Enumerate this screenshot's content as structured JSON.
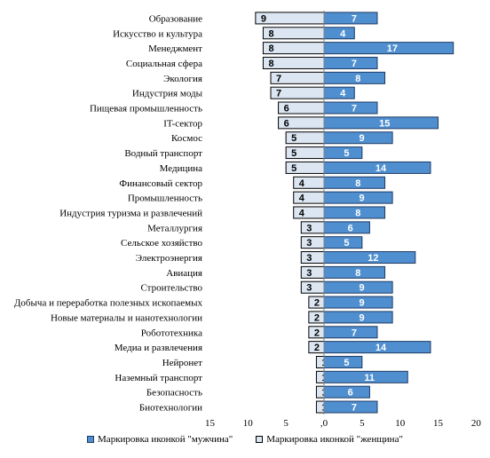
{
  "chart_data": {
    "type": "bar",
    "orientation": "horizontal-diverging",
    "categories": [
      "Образование",
      "Искусство и культура",
      "Менеджмент",
      "Социальная сфера",
      "Экология",
      "Индустрия моды",
      "Пищевая промышленность",
      "IT-сектор",
      "Космос",
      "Водный транспорт",
      "Медицина",
      "Финансовый сектор",
      "Промышленность",
      "Индустрия туризма и развлечений",
      "Металлургия",
      "Сельское хозяйство",
      "Электроэнергия",
      "Авиация",
      "Строительство",
      "Добыча и переработка полезных ископаемых",
      "Новые материалы и нанотехнологии",
      "Робототехника",
      "Медиа и развлечения",
      "Нейронет",
      "Наземный транспорт",
      "Безопасность",
      "Биотехнологии"
    ],
    "series": [
      {
        "name": "Маркировка иконкой \"женщина\"",
        "direction": "left",
        "color": "#dce6f2",
        "stroke": "#000000",
        "values": [
          9,
          8,
          8,
          8,
          7,
          7,
          6,
          6,
          5,
          5,
          5,
          4,
          4,
          4,
          3,
          3,
          3,
          3,
          3,
          2,
          2,
          2,
          2,
          1,
          1,
          1,
          1
        ]
      },
      {
        "name": "Маркировка иконкой \"мужчина\"",
        "direction": "right",
        "color": "#4f8fd0",
        "stroke": "#1f3b63",
        "values": [
          7,
          4,
          17,
          7,
          8,
          4,
          7,
          15,
          9,
          5,
          14,
          8,
          9,
          8,
          6,
          5,
          12,
          8,
          9,
          9,
          9,
          7,
          14,
          5,
          11,
          6,
          7
        ]
      }
    ],
    "xlim": [
      -15,
      20
    ],
    "x_ticks": [
      {
        "value": -15,
        "label": "15"
      },
      {
        "value": -10,
        "label": "10"
      },
      {
        "value": -5,
        "label": "5"
      },
      {
        "value": 0,
        "label": ",0"
      },
      {
        "value": 5,
        "label": "5"
      },
      {
        "value": 10,
        "label": "10"
      },
      {
        "value": 15,
        "label": "15"
      },
      {
        "value": 20,
        "label": "20"
      }
    ],
    "title": "",
    "xlabel": "",
    "ylabel": "",
    "grid": false,
    "legend_position": "bottom"
  }
}
